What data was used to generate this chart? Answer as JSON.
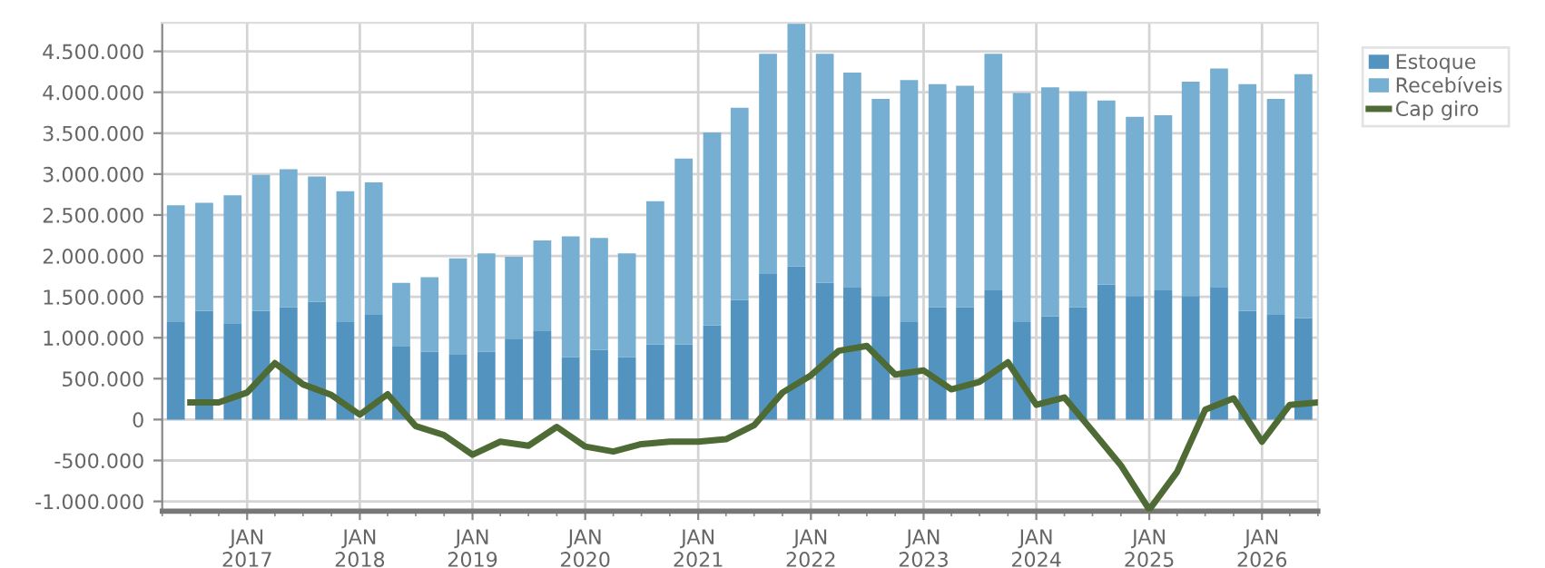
{
  "chart_data": {
    "type": "bar",
    "stacked": true,
    "x": [
      "2016-05-15",
      "2016-08-15",
      "2016-11-15",
      "2017-02-15",
      "2017-05-15",
      "2017-08-15",
      "2017-11-15",
      "2018-02-15",
      "2018-05-15",
      "2018-08-15",
      "2018-11-15",
      "2019-02-15",
      "2019-05-15",
      "2019-08-15",
      "2019-11-15",
      "2020-02-15",
      "2020-05-15",
      "2020-08-15",
      "2020-11-15",
      "2021-02-15",
      "2021-05-15",
      "2021-08-15",
      "2021-11-15",
      "2022-02-15",
      "2022-05-15",
      "2022-08-15",
      "2022-11-15",
      "2023-02-15",
      "2023-05-15",
      "2023-08-15",
      "2023-11-15",
      "2024-02-15",
      "2024-05-15",
      "2024-08-15",
      "2024-11-15",
      "2025-02-15",
      "2025-05-15",
      "2025-08-15",
      "2025-11-15",
      "2026-02-15",
      "2026-05-15"
    ],
    "series": [
      {
        "name": "Estoque",
        "color": "#5393bf",
        "values": [
          1190000,
          1330000,
          1170000,
          1330000,
          1370000,
          1440000,
          1190000,
          1280000,
          900000,
          830000,
          800000,
          830000,
          990000,
          1080000,
          760000,
          850000,
          760000,
          920000,
          920000,
          1150000,
          1460000,
          1780000,
          1870000,
          1670000,
          1620000,
          1510000,
          1190000,
          1370000,
          1370000,
          1580000,
          1190000,
          1260000,
          1370000,
          1650000,
          1510000,
          1580000,
          1510000,
          1620000,
          1330000,
          1280000,
          1240000
        ]
      },
      {
        "name": "Recebíveis",
        "color": "#76afd2",
        "values": [
          1430000,
          1320000,
          1570000,
          1660000,
          1690000,
          1530000,
          1600000,
          1620000,
          770000,
          910000,
          1170000,
          1200000,
          1000000,
          1110000,
          1480000,
          1370000,
          1270000,
          1750000,
          2270000,
          2360000,
          2350000,
          2690000,
          2970000,
          2800000,
          2620000,
          2410000,
          2960000,
          2730000,
          2710000,
          2890000,
          2800000,
          2800000,
          2640000,
          2250000,
          2190000,
          2140000,
          2620000,
          2670000,
          2770000,
          2640000,
          2980000
        ]
      },
      {
        "name": "Cap giro",
        "type": "line",
        "color": "#4f6b35",
        "line_style": "solid",
        "marker": "none",
        "x": [
          "2016-07-01",
          "2016-10-01",
          "2017-01-01",
          "2017-04-01",
          "2017-07-01",
          "2017-10-01",
          "2018-01-01",
          "2018-04-01",
          "2018-07-01",
          "2018-10-01",
          "2019-01-01",
          "2019-04-01",
          "2019-07-01",
          "2019-10-01",
          "2020-01-01",
          "2020-04-01",
          "2020-07-01",
          "2020-10-01",
          "2021-01-01",
          "2021-04-01",
          "2021-07-01",
          "2021-10-01",
          "2022-01-01",
          "2022-04-01",
          "2022-07-01",
          "2022-10-01",
          "2023-01-01",
          "2023-04-01",
          "2023-07-01",
          "2023-10-01",
          "2024-01-01",
          "2024-04-01",
          "2024-07-01",
          "2024-10-01",
          "2025-01-01",
          "2025-04-01",
          "2025-07-01",
          "2025-10-01",
          "2026-01-01",
          "2026-04-01",
          "2026-07-01"
        ],
        "values": [
          210000,
          210000,
          330000,
          690000,
          430000,
          300000,
          60000,
          310000,
          -80000,
          -190000,
          -430000,
          -270000,
          -320000,
          -90000,
          -330000,
          -390000,
          -300000,
          -270000,
          -270000,
          -240000,
          -70000,
          330000,
          540000,
          840000,
          900000,
          550000,
          600000,
          370000,
          460000,
          700000,
          180000,
          270000,
          -140000,
          -560000,
          -1100000,
          -640000,
          120000,
          260000,
          -270000,
          180000,
          210000
        ]
      }
    ],
    "xlim": [
      "2016-04-01",
      "2026-07-01"
    ],
    "xticks": [
      {
        "value": "2017-01-01",
        "label": "JAN\n2017"
      },
      {
        "value": "2018-01-01",
        "label": "JAN\n2018"
      },
      {
        "value": "2019-01-01",
        "label": "JAN\n2019"
      },
      {
        "value": "2020-01-01",
        "label": "JAN\n2020"
      },
      {
        "value": "2021-01-01",
        "label": "JAN\n2021"
      },
      {
        "value": "2022-01-01",
        "label": "JAN\n2022"
      },
      {
        "value": "2023-01-01",
        "label": "JAN\n2023"
      },
      {
        "value": "2024-01-01",
        "label": "JAN\n2024"
      },
      {
        "value": "2025-01-01",
        "label": "JAN\n2025"
      },
      {
        "value": "2026-01-01",
        "label": "JAN\n2026"
      }
    ],
    "ylim": [
      -1120000,
      4850000
    ],
    "yticks": [
      {
        "value": -1000000,
        "label": "-1.000.000"
      },
      {
        "value": -500000,
        "label": "-500.000"
      },
      {
        "value": 0,
        "label": "0"
      },
      {
        "value": 500000,
        "label": "500.000"
      },
      {
        "value": 1000000,
        "label": "1.000.000"
      },
      {
        "value": 1500000,
        "label": "1.500.000"
      },
      {
        "value": 2000000,
        "label": "2.000.000"
      },
      {
        "value": 2500000,
        "label": "2.500.000"
      },
      {
        "value": 3000000,
        "label": "3.000.000"
      },
      {
        "value": 3500000,
        "label": "3.500.000"
      },
      {
        "value": 4000000,
        "label": "4.000.000"
      },
      {
        "value": 4500000,
        "label": "4.500.000"
      }
    ],
    "grid": true,
    "legend": "top right"
  }
}
